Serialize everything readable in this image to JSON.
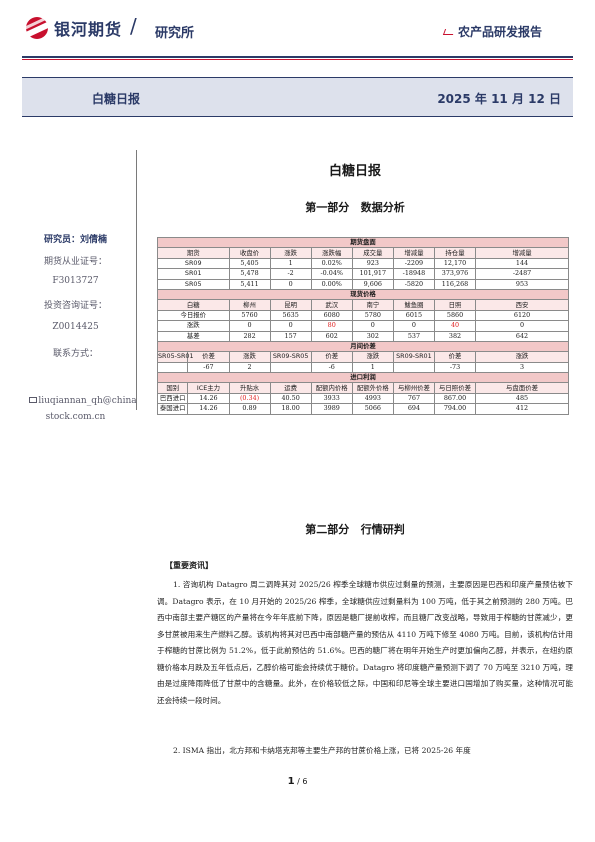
{
  "header": {
    "brand": "银河期货",
    "slash": "/",
    "dept": "研究所",
    "report_type": "农产品研发报告"
  },
  "banner": {
    "title": "白糖日报",
    "date": "2025 年 11 月 12 日"
  },
  "sidebar": {
    "researcher": "研究员：刘倩楠",
    "license_label": "期货从业证号：",
    "license_no": "F3013727",
    "advisor_label": "投资咨询证号：",
    "advisor_no": "Z0014425",
    "contact_label": "联系方式：",
    "email_line1": "liuqiannan_qh@china",
    "email_line2": "stock.com.cn"
  },
  "doc": {
    "title": "白糖日报",
    "part1_num": "第一部分",
    "part1_name": "数据分析",
    "part2_num": "第二部分",
    "part2_name": "行情研判",
    "news_heading": "【重要资讯】"
  },
  "table": {
    "sec_futures": "期货盘面",
    "futures_header": [
      "期货",
      "收盘价",
      "涨跌",
      "涨跌幅",
      "成交量",
      "增减量",
      "持仓量",
      "增减量"
    ],
    "futures_rows": [
      [
        "SR09",
        "5,405",
        "1",
        "0.02%",
        "923",
        "-2209",
        "12,170",
        "144"
      ],
      [
        "SR01",
        "5,478",
        "-2",
        "-0.04%",
        "101,917",
        "-18948",
        "373,976",
        "-2487"
      ],
      [
        "SR05",
        "5,411",
        "0",
        "0.00%",
        "9,606",
        "-5820",
        "116,268",
        "953"
      ]
    ],
    "sec_spot": "现货价格",
    "spot_header": [
      "白糖",
      "柳州",
      "昆明",
      "武汉",
      "南宁",
      "鲅鱼圈",
      "日照",
      "西安"
    ],
    "spot_rows": [
      [
        "今日报价",
        "5760",
        "5635",
        "6080",
        "5780",
        "6015",
        "5860",
        "6120"
      ],
      [
        "涨跌",
        "0",
        "0",
        "80",
        "0",
        "0",
        "40",
        "0"
      ],
      [
        "基差",
        "282",
        "157",
        "602",
        "302",
        "537",
        "382",
        "642"
      ]
    ],
    "sec_spread": "月间价差",
    "spread_header": [
      "SR05-SR01",
      "价差",
      "涨跌",
      "SR09-SR05",
      "价差",
      "涨跌",
      "SR09-SR01",
      "价差",
      "涨跌"
    ],
    "spread_row": [
      "",
      "-67",
      "2",
      "",
      "-6",
      "1",
      "",
      "-73",
      "3"
    ],
    "sec_import": "进口利润",
    "import_header": [
      "国别",
      "ICE主力",
      "升贴水",
      "运费",
      "配额内价格",
      "配额外价格",
      "与柳州价差",
      "与日照价差",
      "与盘面价差"
    ],
    "import_rows": [
      [
        "巴西进口",
        "14.26",
        "(0.34)",
        "40.50",
        "3933",
        "4993",
        "767",
        "867.00",
        "485"
      ],
      [
        "泰国进口",
        "14.26",
        "0.89",
        "18.00",
        "3989",
        "5066",
        "694",
        "794.00",
        "412"
      ]
    ],
    "colors": {
      "section_bg": "#f2c8c8",
      "header_bg": "#fbe8e8",
      "negative_red": "#e02020"
    }
  },
  "paragraphs": {
    "p1": "1. 咨询机构 Datagro 周二调降其对 2025/26 榨季全球糖市供应过剩量的预测，主要原因是巴西和印度产量预估被下调。Datagro 表示，在 10 月开始的 2025/26 榨季，全球糖供应过剩量料为 100 万吨，低于其之前预测的 280 万吨。巴西中南部主要产糖区的产量将在今年年底前下降，原因是糖厂提前收榨，而且糖厂改变战略，导致用于榨糖的甘蔗减少，更多甘蔗被用来生产燃料乙醇。该机构将其对巴西中南部糖产量的预估从 4110 万吨下修至 4080 万吨。目前，该机构估计用于榨糖的甘蔗比例为 51.2%，低于此前预估的 51.6%。巴西的糖厂将在明年开始生产时更加偏向乙醇，并表示，在纽约原糖价格本月跌及五年低点后，乙醇价格可能会持续优于糖价。Datagro 将印度糖产量预测下调了 70 万吨至 3210 万吨，理由是过度降雨降低了甘蔗中的含糖量。此外，在价格较低之际，中国和印尼等全球主要进口国增加了购买量，这种情况可能还会持续一段时间。",
    "p2": "2. ISMA 指出，北方邦和卡纳塔克邦等主要生产邦的甘蔗价格上涨，已将 2025-26 年度"
  },
  "footer": {
    "page": "1",
    "sep": " / ",
    "total": "6"
  }
}
